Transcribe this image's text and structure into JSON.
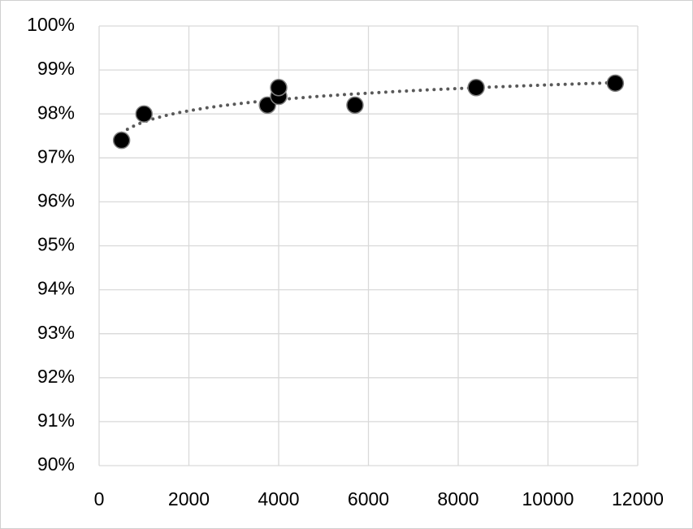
{
  "chart_data": {
    "type": "scatter",
    "x": [
      500,
      1000,
      3750,
      4000,
      4000,
      5700,
      8400,
      11500
    ],
    "values": [
      97.4,
      98.0,
      98.2,
      98.4,
      98.6,
      98.2,
      98.6,
      98.7
    ],
    "color": "#000000",
    "trendline": "logarithmic",
    "trendline_color": "#595959",
    "xlim": [
      0,
      12000
    ],
    "xticks": [
      0,
      2000,
      4000,
      6000,
      8000,
      10000,
      12000
    ],
    "ylim": [
      90,
      100
    ],
    "yticks": [
      {
        "value": 90,
        "label": "90%"
      },
      {
        "value": 91,
        "label": "91%"
      },
      {
        "value": 92,
        "label": "92%"
      },
      {
        "value": 93,
        "label": "93%"
      },
      {
        "value": 94,
        "label": "94%"
      },
      {
        "value": 95,
        "label": "95%"
      },
      {
        "value": 96,
        "label": "96%"
      },
      {
        "value": 97,
        "label": "97%"
      },
      {
        "value": 98,
        "label": "98%"
      },
      {
        "value": 99,
        "label": "99%"
      },
      {
        "value": 100,
        "label": "100%"
      }
    ],
    "grid": true
  }
}
